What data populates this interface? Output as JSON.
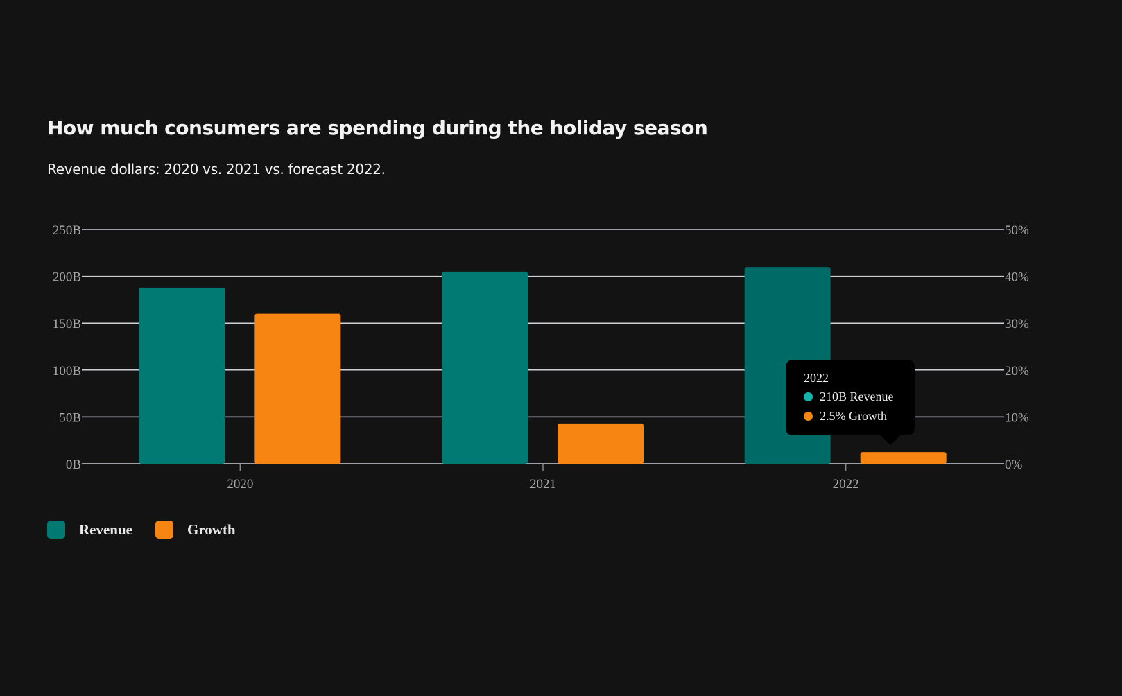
{
  "chart_data": {
    "type": "bar",
    "title": "How much consumers are spending during the holiday season",
    "subtitle": "Revenue dollars: 2020 vs. 2021 vs. forecast 2022.",
    "categories": [
      "2020",
      "2021",
      "2022"
    ],
    "series": [
      {
        "name": "Revenue",
        "values": [
          188,
          205,
          210
        ],
        "unit": "B",
        "axis": "left",
        "color": "#007a73"
      },
      {
        "name": "Growth",
        "values": [
          32,
          8.6,
          2.5
        ],
        "unit": "%",
        "axis": "right",
        "color": "#f68511"
      }
    ],
    "y_left": {
      "ticks": [
        "0B",
        "50B",
        "100B",
        "150B",
        "200B",
        "250B"
      ],
      "range": [
        0,
        250
      ]
    },
    "y_right": {
      "ticks": [
        "0%",
        "10%",
        "20%",
        "30%",
        "40%",
        "50%"
      ],
      "range": [
        0,
        50
      ]
    },
    "grid": true,
    "legend": "bottom-left",
    "tooltip": {
      "title": "2022",
      "rows": [
        "210B Revenue",
        "2.5% Growth"
      ],
      "dot_colors": [
        "#12b5ad",
        "#f68511"
      ]
    },
    "hover_color": "#006b66"
  }
}
